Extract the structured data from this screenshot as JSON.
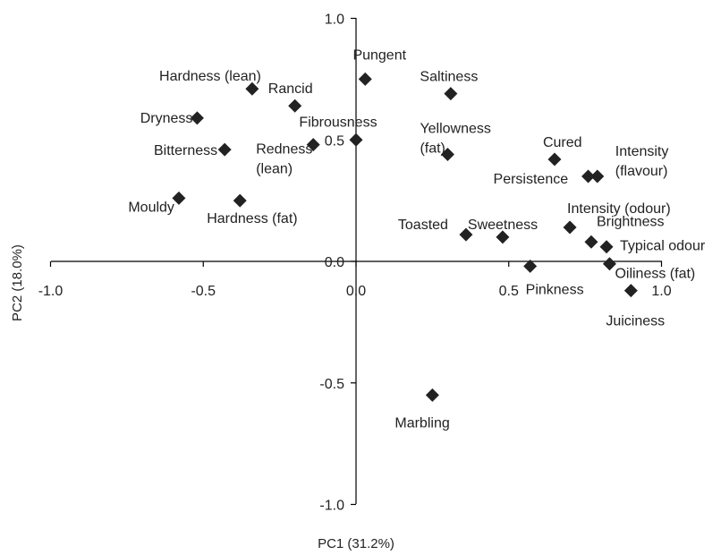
{
  "chart_data": {
    "type": "scatter",
    "xlabel": "PC1 (31.2%)",
    "ylabel": "PC2 (18.0%)",
    "xlim": [
      -1.0,
      1.0
    ],
    "ylim": [
      -1.0,
      1.0
    ],
    "x_ticks": [
      "-1.0",
      "-0.5",
      "0.0",
      "0.5",
      "1.0"
    ],
    "y_ticks": [
      "1.0",
      "0.5",
      "0.0",
      "-0.5",
      "-1.0"
    ],
    "grid": false,
    "marker": "diamond",
    "marker_color": "#222222",
    "points": [
      {
        "label": "Pungent",
        "x": 0.03,
        "y": 0.75
      },
      {
        "label": "Saltiness",
        "x": 0.31,
        "y": 0.69
      },
      {
        "label": "Hardness (lean)",
        "x": -0.34,
        "y": 0.71
      },
      {
        "label": "Rancid",
        "x": -0.2,
        "y": 0.64
      },
      {
        "label": "Dryness",
        "x": -0.52,
        "y": 0.59
      },
      {
        "label": "Fibrousness",
        "x": 0.0,
        "y": 0.5
      },
      {
        "label": "Redness (lean)",
        "x": -0.14,
        "y": 0.48
      },
      {
        "label": "Bitterness",
        "x": -0.43,
        "y": 0.46
      },
      {
        "label": "Yellowness (fat)",
        "x": 0.3,
        "y": 0.44
      },
      {
        "label": "Cured",
        "x": 0.65,
        "y": 0.42
      },
      {
        "label": "Persistence",
        "x": 0.76,
        "y": 0.35
      },
      {
        "label": "Intensity (flavour)",
        "x": 0.79,
        "y": 0.35
      },
      {
        "label": "Mouldy",
        "x": -0.58,
        "y": 0.26
      },
      {
        "label": "Hardness (fat)",
        "x": -0.38,
        "y": 0.25
      },
      {
        "label": "Intensity (odour)",
        "x": 0.7,
        "y": 0.14
      },
      {
        "label": "Toasted",
        "x": 0.36,
        "y": 0.11
      },
      {
        "label": "Sweetness",
        "x": 0.48,
        "y": 0.1
      },
      {
        "label": "Brightness",
        "x": 0.77,
        "y": 0.08
      },
      {
        "label": "Typical odour",
        "x": 0.82,
        "y": 0.06
      },
      {
        "label": "Pinkness",
        "x": 0.57,
        "y": -0.02
      },
      {
        "label": "Oiliness (fat)",
        "x": 0.83,
        "y": -0.01
      },
      {
        "label": "Juiciness",
        "x": 0.9,
        "y": -0.12
      },
      {
        "label": "Marbling",
        "x": 0.25,
        "y": -0.55
      }
    ]
  }
}
